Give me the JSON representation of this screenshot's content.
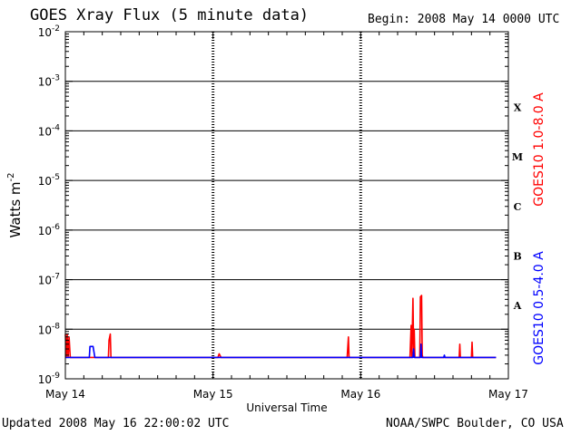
{
  "title": "GOES Xray Flux (5 minute data)",
  "begin": "Begin:  2008 May 14 0000 UTC",
  "footer": {
    "updated": "Updated 2008 May 16 22:00:02 UTC",
    "credit": "NOAA/SWPC Boulder, CO USA"
  },
  "colors": {
    "long": "#ff0000",
    "short": "#0000ff",
    "axis": "#000000"
  },
  "chart_data": {
    "type": "line",
    "title": "GOES Xray Flux (5 minute data)",
    "xlabel": "Universal Time",
    "ylabel": "Watts m",
    "ylabel_sup": "-2",
    "yscale": "log",
    "xlim": [
      0,
      72
    ],
    "ylim": [
      1e-09,
      0.01
    ],
    "grid": "horizontal",
    "x_ticks": [
      {
        "x": 0,
        "label": "May 14"
      },
      {
        "x": 24,
        "label": "May 15"
      },
      {
        "x": 48,
        "label": "May 16"
      },
      {
        "x": 72,
        "label": "May 17"
      }
    ],
    "y_ticks": [
      {
        "value": 1e-09,
        "base": "10",
        "exp": "-9"
      },
      {
        "value": 1e-08,
        "base": "10",
        "exp": "-8"
      },
      {
        "value": 1e-07,
        "base": "10",
        "exp": "-7"
      },
      {
        "value": 1e-06,
        "base": "10",
        "exp": "-6"
      },
      {
        "value": 1e-05,
        "base": "10",
        "exp": "-5"
      },
      {
        "value": 0.0001,
        "base": "10",
        "exp": "-4"
      },
      {
        "value": 0.001,
        "base": "10",
        "exp": "-3"
      },
      {
        "value": 0.01,
        "base": "10",
        "exp": "-2"
      }
    ],
    "flare_classes": [
      {
        "label": "A",
        "value": 3e-08
      },
      {
        "label": "B",
        "value": 3e-07
      },
      {
        "label": "C",
        "value": 3e-06
      },
      {
        "label": "M",
        "value": 3e-05
      },
      {
        "label": "X",
        "value": 0.0003
      }
    ],
    "series": [
      {
        "name": "GOES10 1.0-8.0 A",
        "color": "#ff0000",
        "points": [
          [
            0.0,
            8e-09
          ],
          [
            0.15,
            2.7e-09
          ],
          [
            0.3,
            8e-09
          ],
          [
            0.45,
            2.7e-09
          ],
          [
            0.6,
            7e-09
          ],
          [
            0.8,
            2.7e-09
          ],
          [
            0.9,
            2.7e-09
          ],
          [
            7.0,
            2.7e-09
          ],
          [
            7.1,
            6e-09
          ],
          [
            7.3,
            8e-09
          ],
          [
            7.4,
            2.7e-09
          ],
          [
            22.0,
            2.7e-09
          ],
          [
            24.8,
            2.7e-09
          ],
          [
            25.0,
            3.2e-09
          ],
          [
            25.3,
            2.7e-09
          ],
          [
            45.8,
            2.7e-09
          ],
          [
            46.0,
            7e-09
          ],
          [
            46.1,
            2.7e-09
          ],
          [
            56.0,
            2.7e-09
          ],
          [
            56.2,
            1.2e-08
          ],
          [
            56.3,
            2.7e-09
          ],
          [
            56.5,
            4.2e-08
          ],
          [
            56.6,
            4e-09
          ],
          [
            56.7,
            1e-08
          ],
          [
            56.8,
            2.7e-09
          ],
          [
            57.6,
            2.7e-09
          ],
          [
            57.7,
            4.5e-08
          ],
          [
            57.9,
            4.8e-08
          ],
          [
            58.0,
            3e-09
          ],
          [
            58.1,
            2.7e-09
          ],
          [
            64.0,
            2.7e-09
          ],
          [
            64.1,
            5e-09
          ],
          [
            64.2,
            2.7e-09
          ],
          [
            66.0,
            2.7e-09
          ],
          [
            66.1,
            5.5e-09
          ],
          [
            66.2,
            2.7e-09
          ],
          [
            70.0,
            2.7e-09
          ]
        ]
      },
      {
        "name": "GOES10 0.5-4.0 A",
        "color": "#0000ff",
        "points": [
          [
            0.0,
            2.7e-09
          ],
          [
            3.9,
            2.7e-09
          ],
          [
            4.0,
            4.5e-09
          ],
          [
            4.5,
            4.5e-09
          ],
          [
            4.8,
            2.7e-09
          ],
          [
            22.0,
            2.7e-09
          ],
          [
            24.8,
            2.7e-09
          ],
          [
            45.8,
            2.7e-09
          ],
          [
            56.5,
            2.7e-09
          ],
          [
            56.6,
            4e-09
          ],
          [
            56.7,
            2.7e-09
          ],
          [
            57.7,
            2.7e-09
          ],
          [
            57.8,
            5e-09
          ],
          [
            57.9,
            2.7e-09
          ],
          [
            61.5,
            2.7e-09
          ],
          [
            61.6,
            3e-09
          ],
          [
            61.7,
            2.7e-09
          ],
          [
            70.0,
            2.7e-09
          ]
        ]
      }
    ],
    "legend": [
      {
        "label": "GOES10 1.0-8.0 A",
        "color": "#ff0000",
        "position": "right-upper"
      },
      {
        "label": "GOES10 0.5-4.0 A",
        "color": "#0000ff",
        "position": "right-lower"
      }
    ]
  }
}
